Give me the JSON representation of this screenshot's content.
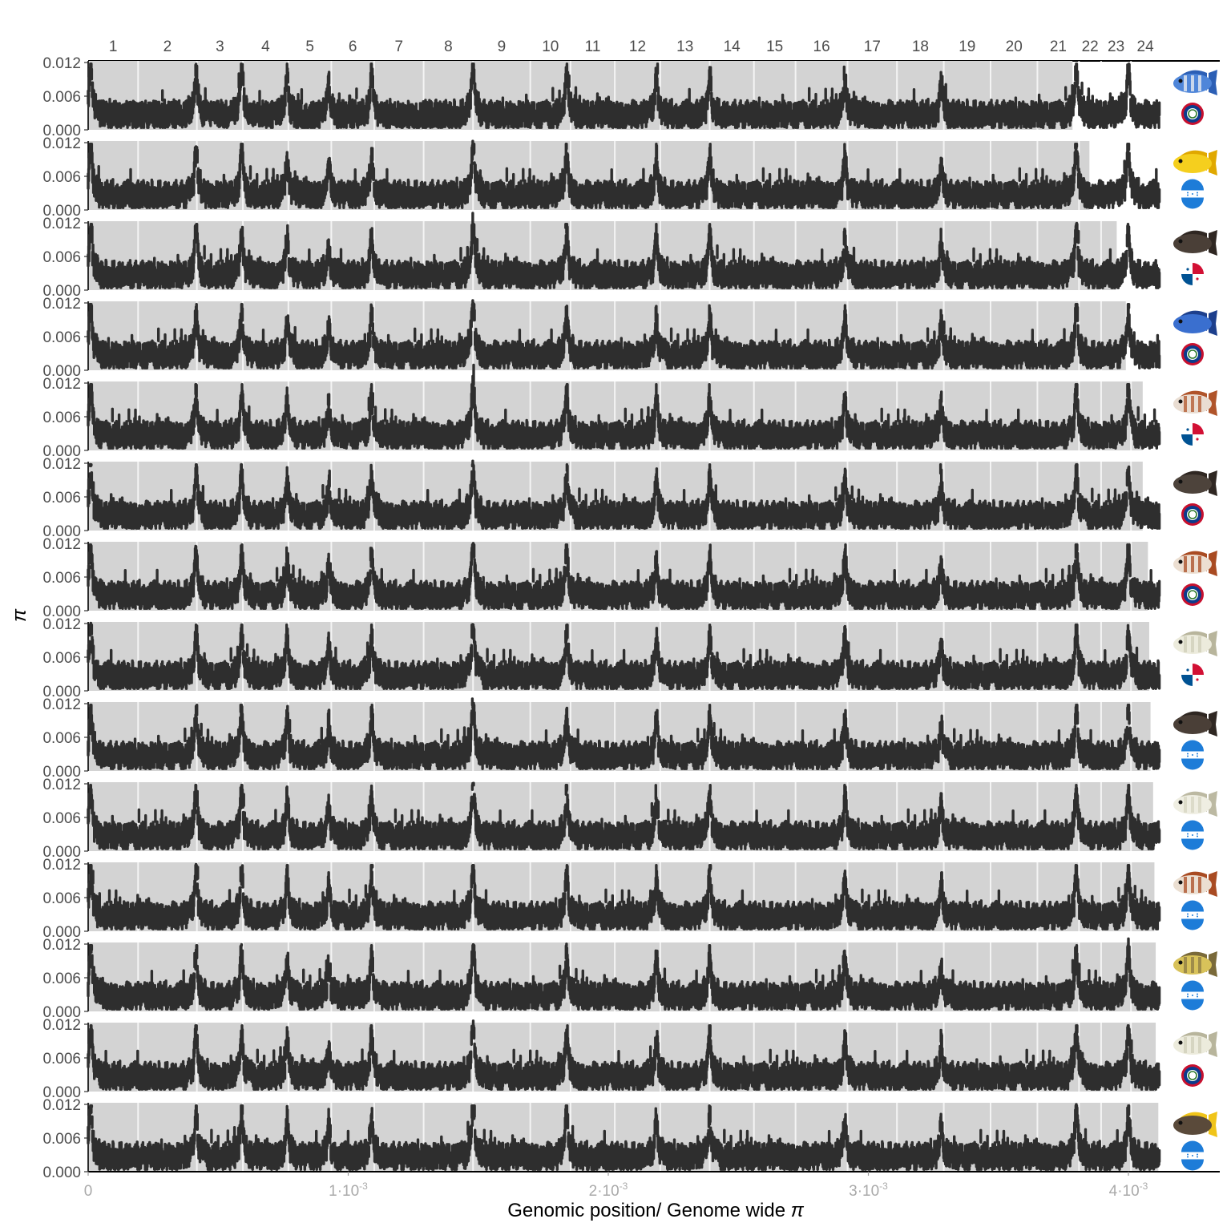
{
  "chart_data": {
    "type": "scatter",
    "xlabel": "Genomic position/ Genome wide",
    "xlabel_symbol": "π",
    "ylabel": "π",
    "x_ticks": [
      {
        "label": "0",
        "value": 0
      },
      {
        "label": "1·10",
        "sup": "-3",
        "value": 0.001
      },
      {
        "label": "2·10",
        "sup": "-3",
        "value": 0.002
      },
      {
        "label": "3·10",
        "sup": "-3",
        "value": 0.003
      },
      {
        "label": "4·10",
        "sup": "-3",
        "value": 0.004
      }
    ],
    "y_ticks": [
      "0.000",
      "0.006",
      "0.012"
    ],
    "ylim": [
      0,
      0.012
    ],
    "linkage_groups": [
      {
        "label": "1",
        "start": 0,
        "end": 0.000192
      },
      {
        "label": "2",
        "start": 0.000192,
        "end": 0.000418
      },
      {
        "label": "3",
        "start": 0.000418,
        "end": 0.000595
      },
      {
        "label": "4",
        "start": 0.000595,
        "end": 0.00077
      },
      {
        "label": "5",
        "start": 0.00077,
        "end": 0.000935
      },
      {
        "label": "6",
        "start": 0.000935,
        "end": 0.0011
      },
      {
        "label": "7",
        "start": 0.0011,
        "end": 0.00129
      },
      {
        "label": "8",
        "start": 0.00129,
        "end": 0.00148
      },
      {
        "label": "9",
        "start": 0.00148,
        "end": 0.0017
      },
      {
        "label": "10",
        "start": 0.0017,
        "end": 0.001855
      },
      {
        "label": "11",
        "start": 0.001855,
        "end": 0.002025
      },
      {
        "label": "12",
        "start": 0.002025,
        "end": 0.0022
      },
      {
        "label": "13",
        "start": 0.0022,
        "end": 0.00239
      },
      {
        "label": "14",
        "start": 0.00239,
        "end": 0.00256
      },
      {
        "label": "15",
        "start": 0.00256,
        "end": 0.00272
      },
      {
        "label": "16",
        "start": 0.00272,
        "end": 0.00292
      },
      {
        "label": "17",
        "start": 0.00292,
        "end": 0.00311
      },
      {
        "label": "18",
        "start": 0.00311,
        "end": 0.00329
      },
      {
        "label": "19",
        "start": 0.00329,
        "end": 0.00347
      },
      {
        "label": "20",
        "start": 0.00347,
        "end": 0.00365
      },
      {
        "label": "21",
        "start": 0.00365,
        "end": 0.00381
      },
      {
        "label": "22",
        "start": 0.00381,
        "end": 0.003895
      },
      {
        "label": "23",
        "start": 0.003895,
        "end": 0.00401
      },
      {
        "label": "24",
        "start": 0.00401,
        "end": 0.00412
      }
    ],
    "peaks": [
      {
        "x": 1e-05,
        "h": 0.007
      },
      {
        "x": 0.000415,
        "h": 0.006
      },
      {
        "x": 0.00059,
        "h": 0.006
      },
      {
        "x": 0.000765,
        "h": 0.005
      },
      {
        "x": 0.000925,
        "h": 0.004
      },
      {
        "x": 0.00109,
        "h": 0.0055
      },
      {
        "x": 0.00148,
        "h": 0.0075
      },
      {
        "x": 0.00184,
        "h": 0.0058
      },
      {
        "x": 0.002185,
        "h": 0.005
      },
      {
        "x": 0.00239,
        "h": 0.0055
      },
      {
        "x": 0.00291,
        "h": 0.0052
      },
      {
        "x": 0.00328,
        "h": 0.0042
      },
      {
        "x": 0.0038,
        "h": 0.0065
      },
      {
        "x": 0.004,
        "h": 0.0062
      }
    ],
    "series": [
      {
        "genome_end": 0.003785,
        "fish": "blue-barred-fish",
        "flag": "belize-flag",
        "body": "#4f86d9",
        "fin": "#2c5fb5",
        "bar": "#f2f2f2"
      },
      {
        "genome_end": 0.00385,
        "fish": "yellow-fish",
        "flag": "honduras-flag",
        "body": "#f5cf1e",
        "fin": "#e0a800",
        "bar": ""
      },
      {
        "genome_end": 0.003955,
        "fish": "dark-brown-fish",
        "flag": "panama-flag",
        "body": "#4a3f37",
        "fin": "#2f2722",
        "bar": ""
      },
      {
        "genome_end": 0.00399,
        "fish": "blue-fish",
        "flag": "belize-flag",
        "body": "#3a6fcf",
        "fin": "#1d3f8c",
        "bar": ""
      },
      {
        "genome_end": 0.004055,
        "fish": "brown-barred-fish",
        "flag": "panama-flag",
        "body": "#e9ddd2",
        "fin": "#b0542a",
        "bar": "#b0542a"
      },
      {
        "genome_end": 0.004055,
        "fish": "dark-brown-fish",
        "flag": "belize-flag",
        "body": "#4d433b",
        "fin": "#2f2722",
        "bar": ""
      },
      {
        "genome_end": 0.004075,
        "fish": "brown-barred-fish",
        "flag": "belize-flag",
        "body": "#ecdfd2",
        "fin": "#a94b22",
        "bar": "#a94b22"
      },
      {
        "genome_end": 0.00408,
        "fish": "pale-fish",
        "flag": "panama-flag",
        "body": "#ecebdc",
        "fin": "#b8b59c",
        "bar": "#cfcdb8"
      },
      {
        "genome_end": 0.004085,
        "fish": "dark-brown-fish",
        "flag": "honduras-flag",
        "body": "#4a3f37",
        "fin": "#2f2722",
        "bar": ""
      },
      {
        "genome_end": 0.004095,
        "fish": "pale-fish",
        "flag": "honduras-flag",
        "body": "#efeee2",
        "fin": "#bcb9a2",
        "bar": "#d6d4c0"
      },
      {
        "genome_end": 0.0041,
        "fish": "brown-barred-fish",
        "flag": "honduras-flag",
        "body": "#ebdfd2",
        "fin": "#a94b22",
        "bar": "#a94b22"
      },
      {
        "genome_end": 0.004105,
        "fish": "yellow-brown-fish",
        "flag": "honduras-flag",
        "body": "#d8c25a",
        "fin": "#7a6a3a",
        "bar": "#8c7a45"
      },
      {
        "genome_end": 0.004105,
        "fish": "pale-fish",
        "flag": "belize-flag",
        "body": "#ecebdc",
        "fin": "#b8b59c",
        "bar": "#cfcdb8"
      },
      {
        "genome_end": 0.004115,
        "fish": "dark-yellow-fish",
        "flag": "honduras-flag",
        "body": "#5a4a3a",
        "fin": "#f0c419",
        "bar": ""
      }
    ]
  }
}
